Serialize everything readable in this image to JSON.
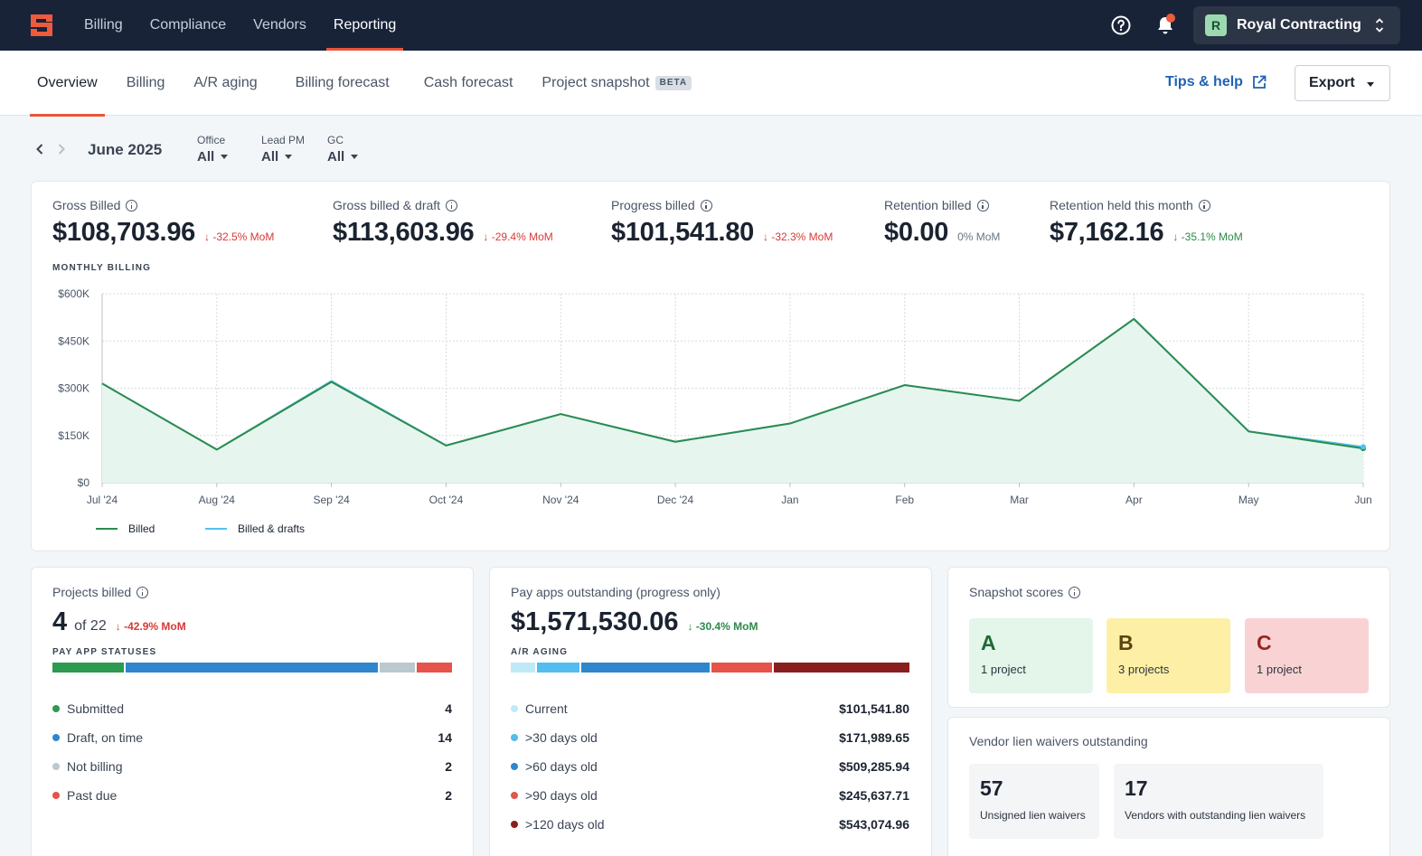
{
  "topnav": {
    "items": [
      "Billing",
      "Compliance",
      "Vendors",
      "Reporting"
    ],
    "active": "Reporting",
    "org": {
      "initial": "R",
      "name": "Royal Contracting"
    }
  },
  "tabs": {
    "items": [
      "Overview",
      "Billing",
      "A/R aging",
      "Billing forecast",
      "Cash forecast",
      "Project snapshot"
    ],
    "beta_label": "BETA",
    "active": "Overview",
    "tips_label": "Tips & help",
    "export_label": "Export"
  },
  "filters": {
    "period": "June 2025",
    "office": {
      "label": "Office",
      "value": "All"
    },
    "lead_pm": {
      "label": "Lead PM",
      "value": "All"
    },
    "gc": {
      "label": "GC",
      "value": "All"
    }
  },
  "metrics": [
    {
      "label": "Gross Billed",
      "value": "$108,703.96",
      "delta": "-32.5% MoM",
      "direction": "down",
      "tone": "red"
    },
    {
      "label": "Gross billed & draft",
      "value": "$113,603.96",
      "delta": "-29.4% MoM",
      "direction": "down",
      "tone": "red"
    },
    {
      "label": "Progress billed",
      "value": "$101,541.80",
      "delta": "-32.3% MoM",
      "direction": "down",
      "tone": "red"
    },
    {
      "label": "Retention billed",
      "value": "$0.00",
      "delta": "0% MoM",
      "direction": "none",
      "tone": "gray"
    },
    {
      "label": "Retention held this month",
      "value": "$7,162.16",
      "delta": "-35.1% MoM",
      "direction": "down",
      "tone": "green"
    }
  ],
  "monthly_billing_label": "MONTHLY BILLING",
  "chart_data": {
    "type": "line",
    "x": [
      "Jul '24",
      "Aug '24",
      "Sep '24",
      "Oct '24",
      "Nov '24",
      "Dec '24",
      "Jan",
      "Feb",
      "Mar",
      "Apr",
      "May",
      "Jun"
    ],
    "y_ticks": [
      "$0",
      "$150K",
      "$300K",
      "$450K",
      "$600K"
    ],
    "ylim": [
      0,
      600000
    ],
    "series": [
      {
        "name": "Billed",
        "color": "#2e8b4e",
        "values": [
          315000,
          105000,
          320000,
          118000,
          218000,
          130000,
          188000,
          310000,
          260000,
          520000,
          163000,
          108704
        ]
      },
      {
        "name": "Billed & drafts",
        "color": "#4fc3ef",
        "values": [
          315000,
          105000,
          323000,
          118000,
          218000,
          130000,
          188000,
          310000,
          260000,
          520000,
          163000,
          113604
        ]
      }
    ],
    "area_fill": "#e6f6ee",
    "grid": true,
    "legend": "bottom-left"
  },
  "projects_billed": {
    "title": "Projects billed",
    "value": "4",
    "of": "of 22",
    "delta": "-42.9% MoM",
    "statuses_label": "PAY APP STATUSES",
    "rows": [
      {
        "label": "Submitted",
        "value": "4",
        "color": "#2e9a4f"
      },
      {
        "label": "Draft, on time",
        "value": "14",
        "color": "#2f86cc"
      },
      {
        "label": "Not billing",
        "value": "2",
        "color": "#bcc8cf"
      },
      {
        "label": "Past due",
        "value": "2",
        "color": "#e5534b"
      }
    ]
  },
  "pay_apps": {
    "title": "Pay apps outstanding (progress only)",
    "value": "$1,571,530.06",
    "delta": "-30.4% MoM",
    "aging_label": "A/R AGING",
    "rows": [
      {
        "label": "Current",
        "value": "$101,541.80",
        "color": "#bfe9f7"
      },
      {
        "label": ">30 days old",
        "value": "$171,989.65",
        "color": "#52bdee"
      },
      {
        "label": ">60 days old",
        "value": "$509,285.94",
        "color": "#2f86cc"
      },
      {
        "label": ">90 days old",
        "value": "$245,637.71",
        "color": "#e5534b"
      },
      {
        "label": ">120 days old",
        "value": "$543,074.96",
        "color": "#8a1f1f"
      }
    ]
  },
  "snapshot": {
    "title": "Snapshot scores",
    "scores": [
      {
        "grade": "A",
        "count": "1 project",
        "bg": "#e4f5e9",
        "fg": "#1f6b34"
      },
      {
        "grade": "B",
        "count": "3 projects",
        "bg": "#fdf0a6",
        "fg": "#5c4410"
      },
      {
        "grade": "C",
        "count": "1 project",
        "bg": "#f9d3d3",
        "fg": "#9b2424"
      }
    ]
  },
  "lien_waivers": {
    "title": "Vendor lien waivers outstanding",
    "unsigned": {
      "value": "57",
      "label": "Unsigned lien waivers"
    },
    "vendors": {
      "value": "17",
      "label": "Vendors with outstanding lien waivers"
    }
  }
}
